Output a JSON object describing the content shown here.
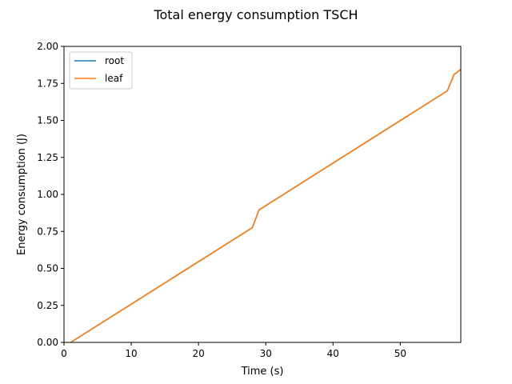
{
  "chart_data": {
    "type": "line",
    "title": "Total energy consumption TSCH",
    "xlabel": "Time (s)",
    "ylabel": "Energy consumption (J)",
    "xlim": [
      0,
      59
    ],
    "ylim": [
      0,
      2.0
    ],
    "xticks": [
      0,
      10,
      20,
      30,
      40,
      50
    ],
    "yticks": [
      0.0,
      0.25,
      0.5,
      0.75,
      1.0,
      1.25,
      1.5,
      1.75,
      2.0
    ],
    "xtick_labels": [
      "0",
      "10",
      "20",
      "30",
      "40",
      "50"
    ],
    "ytick_labels": [
      "0.00",
      "0.25",
      "0.50",
      "0.75",
      "1.00",
      "1.25",
      "1.50",
      "1.75",
      "2.00"
    ],
    "grid": false,
    "legend_position": "upper-left",
    "series": [
      {
        "name": "root",
        "color": "#1f77b4",
        "x": [
          1,
          28,
          29,
          57,
          58,
          59
        ],
        "y": [
          0.0,
          0.775,
          0.895,
          1.7,
          1.81,
          1.845
        ]
      },
      {
        "name": "leaf",
        "color": "#ff7f0e",
        "x": [
          1,
          28,
          29,
          57,
          58,
          59
        ],
        "y": [
          0.0,
          0.775,
          0.895,
          1.7,
          1.81,
          1.845
        ]
      }
    ]
  }
}
